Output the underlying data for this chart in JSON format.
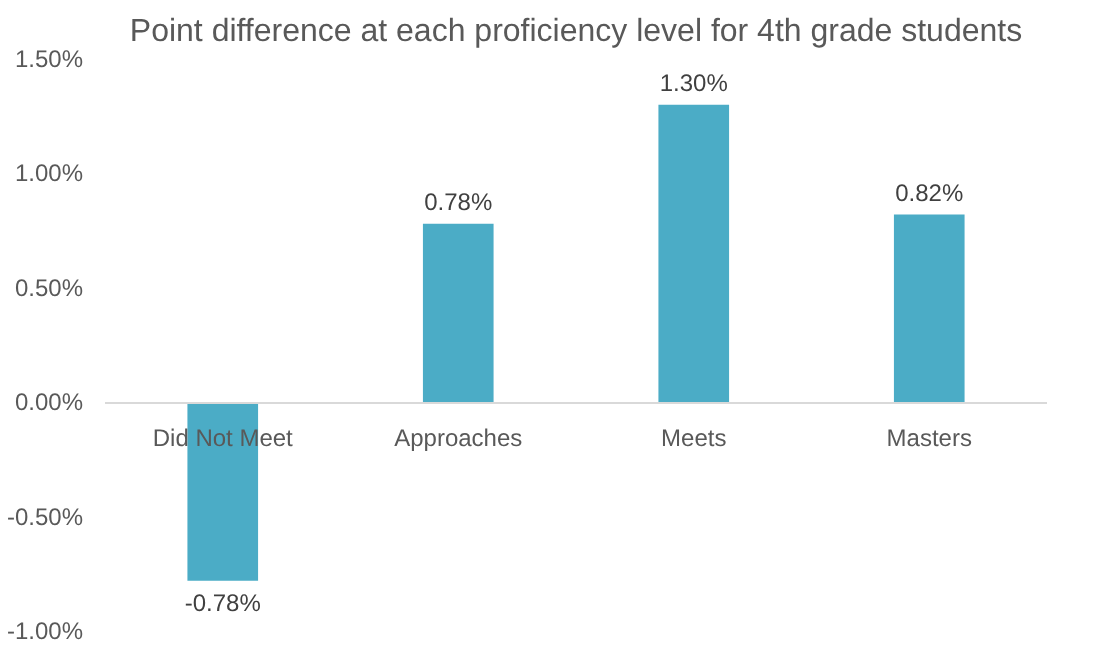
{
  "chart_data": {
    "type": "bar",
    "title": "Point difference at each proficiency level for 4th grade students",
    "categories": [
      "Did Not Meet",
      "Approaches",
      "Meets",
      "Masters"
    ],
    "values": [
      -0.78,
      0.78,
      1.3,
      0.82
    ],
    "value_labels": [
      "-0.78%",
      "0.78%",
      "1.30%",
      "0.82%"
    ],
    "color": "#4bacc6",
    "ylim": [
      -1.0,
      1.5
    ],
    "yticks": [
      {
        "value": -1.0,
        "label": "-1.00%"
      },
      {
        "value": -0.5,
        "label": "-0.50%"
      },
      {
        "value": 0,
        "label": "0.00%"
      },
      {
        "value": 0.5,
        "label": "0.50%"
      },
      {
        "value": 1.0,
        "label": "1.00%"
      },
      {
        "value": 1.5,
        "label": "1.50%"
      }
    ],
    "grid": false
  }
}
